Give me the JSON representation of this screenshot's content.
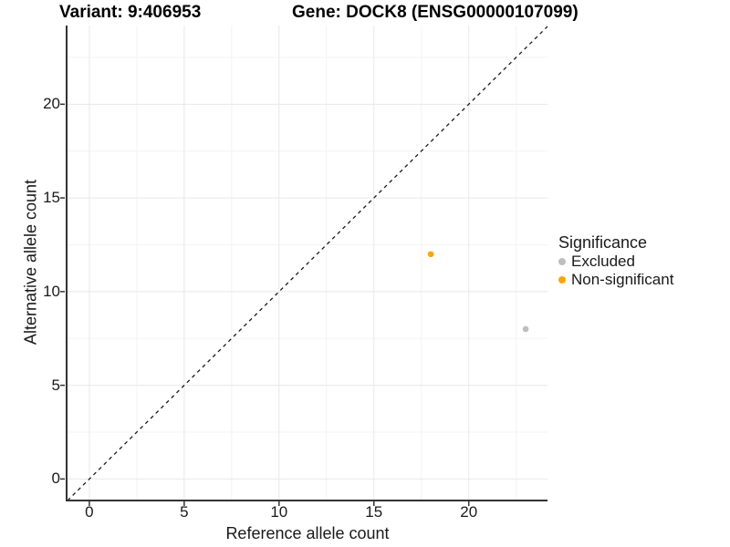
{
  "chart_data": {
    "type": "scatter",
    "title_left": "Variant: 9:406953",
    "title_right": "Gene: DOCK8 (ENSG00000107099)",
    "xlabel": "Reference allele count",
    "ylabel": "Alternative allele count",
    "xlim": [
      -1.15,
      24.15
    ],
    "ylim": [
      -1.1,
      24.2
    ],
    "x_ticks": [
      0,
      5,
      10,
      15,
      20
    ],
    "y_ticks": [
      0,
      5,
      10,
      15,
      20
    ],
    "minor_grid_step": 2.5,
    "grid": "major+minor",
    "identity_line": {
      "equation": "y = x",
      "style": "dashed",
      "color": "#1a1a1a"
    },
    "series": [
      {
        "name": "Excluded",
        "color": "#BEBEBE",
        "points": [
          {
            "x": 23,
            "y": 8
          }
        ]
      },
      {
        "name": "Non-significant",
        "color": "#FFA500",
        "points": [
          {
            "x": 18,
            "y": 12
          }
        ]
      }
    ],
    "legend": {
      "title": "Significance",
      "position": "right"
    }
  },
  "colors": {
    "background": "#ffffff",
    "grid_major": "#e8e8e8",
    "grid_minor": "#f3f3f3",
    "axis_line": "#333333",
    "tick_mark": "#333333",
    "text": "#1a1a1a"
  }
}
